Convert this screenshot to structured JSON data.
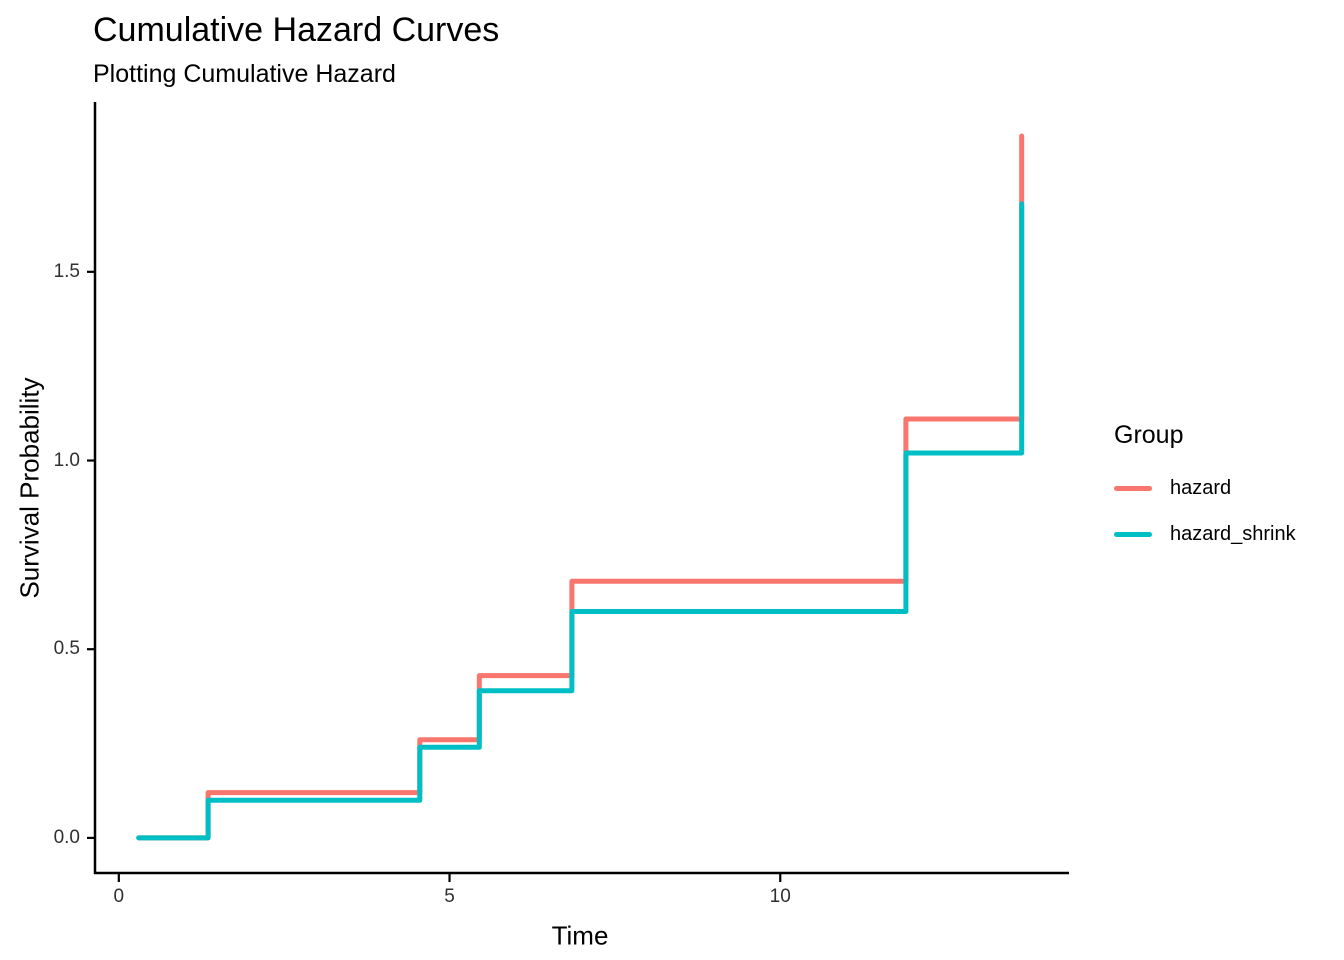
{
  "chart_data": {
    "type": "line",
    "subtype": "step",
    "title": "Cumulative Hazard Curves",
    "subtitle": "Plotting Cumulative Hazard",
    "xlabel": "Time",
    "ylabel": "Survival Probability",
    "xlim": [
      -0.36,
      14.32
    ],
    "ylim": [
      -0.093,
      1.95
    ],
    "grid": false,
    "legend_position": "right",
    "x_ticks": [
      {
        "value": 0,
        "label": "0"
      },
      {
        "value": 5,
        "label": "5"
      },
      {
        "value": 10,
        "label": "10"
      }
    ],
    "y_ticks": [
      {
        "value": 0,
        "label": "0.0"
      },
      {
        "value": 0.5,
        "label": "0.5"
      },
      {
        "value": 1,
        "label": "1.0"
      },
      {
        "value": 1.5,
        "label": "1.5"
      }
    ],
    "series": [
      {
        "name": "hazard",
        "color": "#F8766D",
        "x": [
          0.3,
          1.35,
          4.55,
          5.45,
          6.85,
          11.9,
          13.65
        ],
        "y": [
          0,
          0.12,
          0.26,
          0.43,
          0.68,
          1.11,
          1.86
        ]
      },
      {
        "name": "hazard_shrink",
        "color": "#00BFC4",
        "x": [
          0.3,
          1.35,
          4.55,
          5.45,
          6.85,
          11.9,
          13.65
        ],
        "y": [
          0,
          0.1,
          0.24,
          0.39,
          0.6,
          1.02,
          1.68
        ]
      }
    ],
    "axis_color": "#000000",
    "tick_color": "#303030"
  },
  "legend": {
    "title": "Group",
    "items": [
      {
        "label": "hazard",
        "color": "#F8766D"
      },
      {
        "label": "hazard_shrink",
        "color": "#00BFC4"
      }
    ]
  }
}
